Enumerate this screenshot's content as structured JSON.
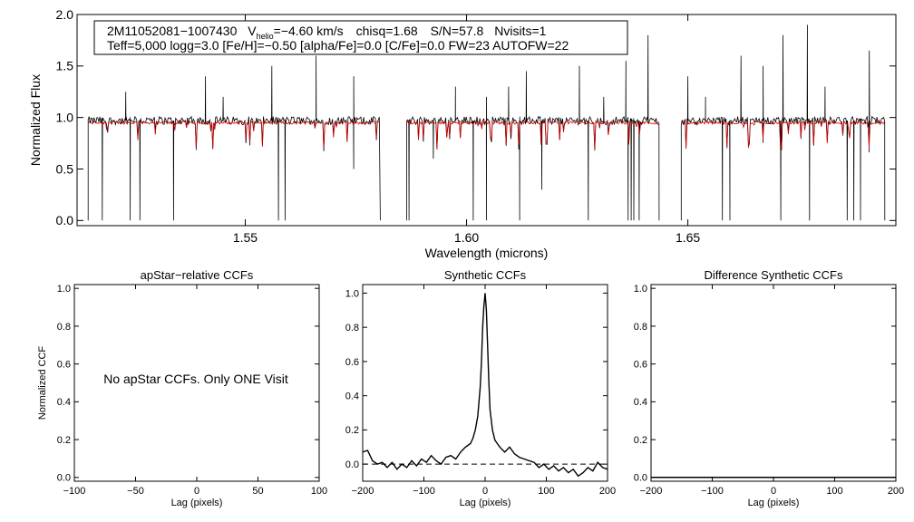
{
  "info_box": {
    "star_id": "2M11052081−1007430",
    "vhelio_label": "V",
    "vhelio_sub": "helio",
    "vhelio_value": "=−4.60 km/s",
    "chisq": "chisq=1.68",
    "sn": "S/N=57.8",
    "nvisits": "Nvisits=1",
    "line2": "Teff=5,000 logg=3.0 [Fe/H]=−0.50 [alpha/Fe]=0.0 [C/Fe]=0.0 FW=23 AUTOFW=22"
  },
  "no_ccf_message": "No apStar CCFs.  Only ONE Visit",
  "colors": {
    "observed": "#000000",
    "model": "#cc0000",
    "axes": "#000000"
  },
  "chart_data": [
    {
      "type": "line",
      "id": "spectrum",
      "title": "",
      "xlabel": "Wavelength (microns)",
      "ylabel": "Normalized Flux",
      "xlim": [
        1.512,
        1.697
      ],
      "ylim": [
        -0.05,
        2.0
      ],
      "xticks": [
        1.55,
        1.6,
        1.65
      ],
      "xtick_labels": [
        "1.55",
        "1.60",
        "1.65"
      ],
      "yticks": [
        0.0,
        0.5,
        1.0,
        1.5,
        2.0
      ],
      "ytick_labels": [
        "0.0",
        "0.5",
        "1.0",
        "1.5",
        "2.0"
      ],
      "chips": [
        [
          1.5145,
          1.5805
        ],
        [
          1.5865,
          1.6435
        ],
        [
          1.6485,
          1.6945
        ]
      ],
      "continuum": 0.97,
      "series": [
        {
          "values_note": "",
          "kind": "observed"
        },
        {
          "kind": "model"
        }
      ],
      "emission_spikes": [
        [
          1.523,
          1.25
        ],
        [
          1.541,
          1.4
        ],
        [
          1.545,
          1.2
        ],
        [
          1.556,
          1.5
        ],
        [
          1.566,
          1.6
        ],
        [
          1.5745,
          1.4
        ],
        [
          1.5975,
          1.3
        ],
        [
          1.6045,
          1.2
        ],
        [
          1.6095,
          1.3
        ],
        [
          1.6135,
          1.45
        ],
        [
          1.6255,
          1.5
        ],
        [
          1.631,
          1.2
        ],
        [
          1.636,
          1.55
        ],
        [
          1.641,
          1.8
        ],
        [
          1.65,
          1.4
        ],
        [
          1.654,
          1.2
        ],
        [
          1.662,
          1.6
        ],
        [
          1.667,
          1.5
        ],
        [
          1.6715,
          1.8
        ],
        [
          1.677,
          1.9
        ],
        [
          1.681,
          1.3
        ],
        [
          1.691,
          1.65
        ]
      ],
      "absorption_dips": [
        [
          1.5177,
          0.0
        ],
        [
          1.524,
          0.0
        ],
        [
          1.5262,
          0.0
        ],
        [
          1.5338,
          0.0
        ],
        [
          1.5575,
          0.0
        ],
        [
          1.559,
          0.0
        ],
        [
          1.5745,
          0.5
        ],
        [
          1.587,
          0.0
        ],
        [
          1.5925,
          0.6
        ],
        [
          1.6015,
          0.0
        ],
        [
          1.6045,
          0.0
        ],
        [
          1.612,
          0.0
        ],
        [
          1.617,
          0.3
        ],
        [
          1.6275,
          0.0
        ],
        [
          1.6365,
          0.0
        ],
        [
          1.6372,
          0.0
        ],
        [
          1.6378,
          0.0
        ],
        [
          1.639,
          0.0
        ],
        [
          1.6578,
          0.0
        ],
        [
          1.6595,
          0.0
        ],
        [
          1.671,
          0.0
        ],
        [
          1.6775,
          0.0
        ],
        [
          1.686,
          0.0
        ],
        [
          1.6875,
          0.0
        ],
        [
          1.689,
          0.0
        ]
      ]
    },
    {
      "type": "line",
      "id": "apstar_ccf",
      "title": "apStar−relative CCFs",
      "xlabel": "Lag (pixels)",
      "ylabel": "Normalized CCF",
      "xlim": [
        -100,
        100
      ],
      "ylim": [
        -0.02,
        1.02
      ],
      "xticks": [
        -100,
        -50,
        0,
        50,
        100
      ],
      "xtick_labels": [
        "−100",
        "−50",
        "0",
        "50",
        "100"
      ],
      "yticks": [
        0.0,
        0.2,
        0.4,
        0.6,
        0.8,
        1.0
      ],
      "ytick_labels": [
        "0.0",
        "0.2",
        "0.4",
        "0.6",
        "0.8",
        "1.0"
      ],
      "series": []
    },
    {
      "type": "line",
      "id": "synthetic_ccf",
      "title": "Synthetic CCFs",
      "xlabel": "Lag (pixels)",
      "ylabel": "",
      "xlim": [
        -200,
        200
      ],
      "ylim": [
        -0.1,
        1.05
      ],
      "xticks": [
        -200,
        -100,
        0,
        100,
        200
      ],
      "xtick_labels": [
        "−200",
        "−100",
        "0",
        "100",
        "200"
      ],
      "yticks": [
        0.0,
        0.2,
        0.4,
        0.6,
        0.8,
        1.0
      ],
      "ytick_labels": [
        "0.0",
        "0.2",
        "0.4",
        "0.6",
        "0.8",
        "1.0"
      ],
      "zero_line": "dashed",
      "series": [
        {
          "x": [
            -200,
            -192,
            -184,
            -176,
            -168,
            -160,
            -152,
            -144,
            -136,
            -128,
            -120,
            -112,
            -104,
            -96,
            -88,
            -80,
            -72,
            -64,
            -56,
            -48,
            -40,
            -32,
            -24,
            -20,
            -16,
            -12,
            -8,
            -6,
            -4,
            -2,
            0,
            2,
            4,
            6,
            8,
            12,
            16,
            20,
            24,
            32,
            40,
            48,
            56,
            64,
            72,
            80,
            88,
            96,
            104,
            112,
            120,
            128,
            136,
            144,
            152,
            160,
            168,
            176,
            184,
            192,
            200
          ],
          "y": [
            0.07,
            0.08,
            0.02,
            0.0,
            0.01,
            -0.02,
            0.01,
            -0.03,
            0.0,
            -0.02,
            0.02,
            -0.01,
            0.03,
            0.01,
            0.05,
            0.02,
            0.0,
            0.04,
            0.05,
            0.03,
            0.07,
            0.1,
            0.12,
            0.15,
            0.2,
            0.28,
            0.45,
            0.6,
            0.8,
            0.92,
            1.0,
            0.9,
            0.7,
            0.5,
            0.32,
            0.2,
            0.14,
            0.12,
            0.1,
            0.07,
            0.1,
            0.06,
            0.04,
            0.03,
            0.02,
            0.01,
            -0.02,
            0.0,
            -0.03,
            -0.01,
            -0.04,
            -0.02,
            -0.05,
            -0.03,
            -0.07,
            -0.05,
            -0.02,
            -0.04,
            0.01,
            -0.02,
            -0.03
          ]
        }
      ]
    },
    {
      "type": "line",
      "id": "difference_ccf",
      "title": "Difference Synthetic CCFs",
      "xlabel": "Lag (pixels)",
      "ylabel": "",
      "xlim": [
        -200,
        200
      ],
      "ylim": [
        -0.02,
        1.02
      ],
      "xticks": [
        -200,
        -100,
        0,
        100,
        200
      ],
      "xtick_labels": [
        "−200",
        "−100",
        "0",
        "100",
        "200"
      ],
      "yticks": [
        0.0,
        0.2,
        0.4,
        0.6,
        0.8,
        1.0
      ],
      "ytick_labels": [
        "0.0",
        "0.2",
        "0.4",
        "0.6",
        "0.8",
        "1.0"
      ],
      "series": [
        {
          "x": [
            -200,
            200
          ],
          "y": [
            0.0,
            0.0
          ]
        }
      ]
    }
  ]
}
